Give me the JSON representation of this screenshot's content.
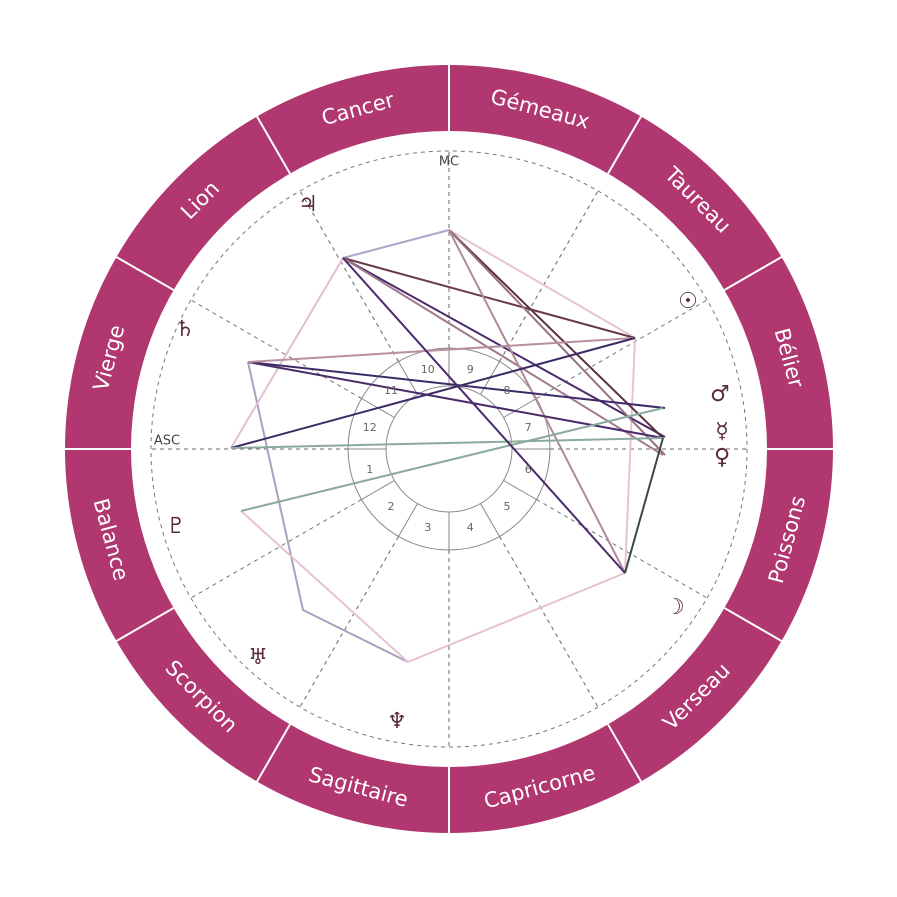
{
  "signs": [
    "Bélier",
    "Gémeaux",
    "Taureau",
    "Cancer",
    "Lion",
    "Vierge",
    "Balance",
    "Scorpion",
    "Sagittaire",
    "Capricorne",
    "Verseau",
    "Poissons"
  ],
  "axes": {
    "mc": "MC",
    "asc": "ASC"
  },
  "houses": [
    "1",
    "2",
    "3",
    "4",
    "5",
    "6",
    "7",
    "8",
    "9",
    "10",
    "11",
    "12"
  ],
  "planets": [
    "♃",
    "♄",
    "☉",
    "♂",
    "☿",
    "♀",
    "☽",
    "♇",
    "♅",
    "♆"
  ]
}
